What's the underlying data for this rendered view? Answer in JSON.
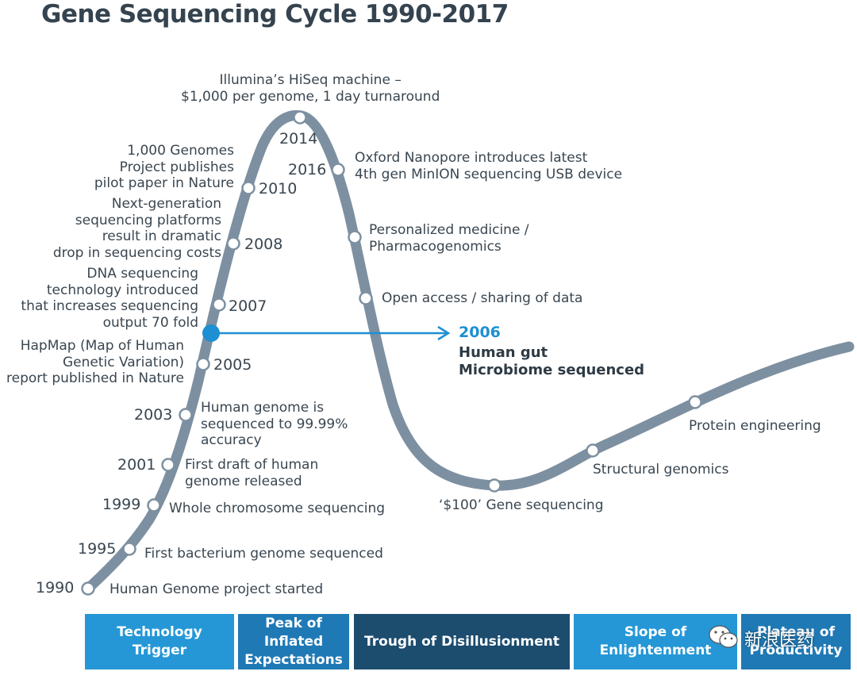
{
  "title": "Gene Sequencing Cycle 1990-2017",
  "colors": {
    "curve": "#7d90a1",
    "accent": "#1e8fd2",
    "phase_light": "#2597d6",
    "phase_mid": "#1f79b5",
    "phase_dark": "#1c4c6e"
  },
  "milestones": [
    {
      "year": "1990",
      "text": "Human Genome project started"
    },
    {
      "year": "1995",
      "text": "First bacterium genome sequenced"
    },
    {
      "year": "1999",
      "text": "Whole chromosome sequencing"
    },
    {
      "year": "2001",
      "text": "First draft of human\ngenome released"
    },
    {
      "year": "2003",
      "text": "Human genome is\nsequenced to 99.99%\naccuracy"
    },
    {
      "year": "2005",
      "text": "HapMap (Map of Human\nGenetic Variation)\nreport published in Nature"
    },
    {
      "year": "2007",
      "text": "DNA sequencing\ntechnology introduced\nthat increases sequencing\noutput 70 fold"
    },
    {
      "year": "2008",
      "text": "Next-generation\nsequencing platforms\nresult in dramatic\ndrop in sequencing costs"
    },
    {
      "year": "2010",
      "text": "1,000 Genomes\nProject publishes\npilot paper in Nature"
    },
    {
      "year": "2014",
      "text": "Illumina’s HiSeq machine –\n$1,000 per genome, 1 day turnaround"
    },
    {
      "year": "2016",
      "text": "Oxford Nanopore introduces latest\n4th gen MinION sequencing USB device"
    },
    {
      "year": "",
      "text": "Personalized medicine /\nPharmacogenomics"
    },
    {
      "year": "",
      "text": "Open access / sharing of data"
    },
    {
      "year": "",
      "text": "‘$100’ Gene sequencing"
    },
    {
      "year": "",
      "text": "Structural genomics"
    },
    {
      "year": "",
      "text": "Protein engineering"
    }
  ],
  "highlight": {
    "year": "2006",
    "text": "Human gut\nMicrobiome sequenced"
  },
  "phases": [
    "Technology\nTrigger",
    "Peak of\nInflated\nExpectations",
    "Trough of Disillusionment",
    "Slope of\nEnlightenment",
    "Plateau of\nProductivity"
  ],
  "watermark": {
    "text": "新浪医药",
    "icon": "wechat-icon"
  }
}
